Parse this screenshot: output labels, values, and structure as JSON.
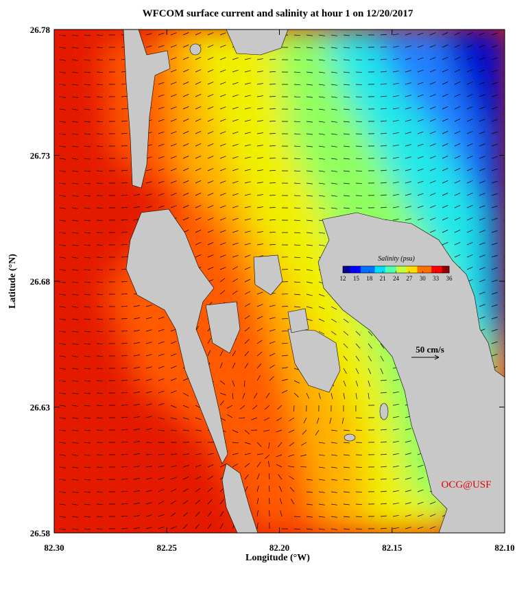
{
  "chart_data": {
    "type": "map",
    "title": "WFCOM surface current and salinity at hour 1 on 12/20/2017",
    "x_label": "Longitude (°W)",
    "y_label": "Latitude (°N)",
    "xlim": [
      82.3,
      82.1
    ],
    "ylim": [
      26.58,
      26.78
    ],
    "xticks": [
      {
        "value": 82.3,
        "label": "82.30"
      },
      82.25,
      {
        "value": 82.2,
        "label": "82.20"
      },
      82.15,
      {
        "value": 82.1,
        "label": "82.10"
      }
    ],
    "yticks": [
      26.58,
      26.63,
      26.68,
      26.73,
      26.78
    ],
    "colorbar": {
      "title": "Salinity (psu)",
      "lim": [
        12,
        36
      ],
      "ticks": [
        12,
        15,
        18,
        21,
        24,
        27,
        30,
        33,
        36
      ],
      "colors": [
        "#00008f",
        "#0000ff",
        "#006fff",
        "#00dfff",
        "#50ffaf",
        "#bfff40",
        "#ffdf00",
        "#ff7000",
        "#ff0000",
        "#8f0000"
      ]
    },
    "scale_label": "50 cm/s",
    "credit": "OCG@USF"
  }
}
